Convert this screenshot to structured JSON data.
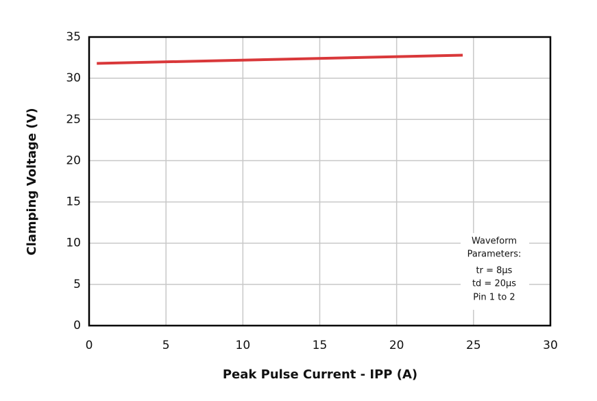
{
  "chart_data": {
    "type": "line",
    "xlabel": "Peak Pulse Current - IPP (A)",
    "ylabel": "Clamping Voltage (V)",
    "x": [
      0.5,
      24.3
    ],
    "series": [
      {
        "color": "#d9383a",
        "values": [
          31.8,
          32.8
        ]
      }
    ],
    "xlim": [
      0,
      30
    ],
    "xticks": [
      0,
      5,
      10,
      15,
      20,
      25,
      30
    ],
    "ylim": [
      0,
      35
    ],
    "yticks": [
      0,
      5,
      10,
      15,
      20,
      25,
      30,
      35
    ],
    "grid": true,
    "annotation": [
      "Waveform",
      "Parameters:",
      "tr = 8μs",
      "td = 20μs",
      "Pin 1 to 2"
    ]
  }
}
